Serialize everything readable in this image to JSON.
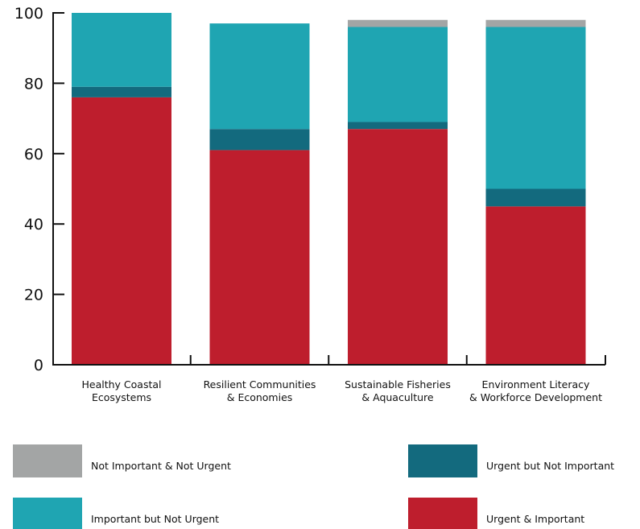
{
  "chart_data": {
    "type": "bar",
    "stacked": true,
    "categories": [
      [
        "Healthy Coastal",
        "Ecosystems"
      ],
      [
        "Resilient Communities",
        "& Economies"
      ],
      [
        "Sustainable Fisheries",
        "& Aquaculture"
      ],
      [
        "Environment Literacy",
        "& Workforce Development"
      ]
    ],
    "series": [
      {
        "name": "Urgent & Important",
        "color": "#be1e2d",
        "values": [
          76,
          61,
          67,
          45
        ]
      },
      {
        "name": "Urgent but Not Important",
        "color": "#136a7e",
        "values": [
          3,
          6,
          2,
          5
        ]
      },
      {
        "name": "Important but Not Urgent",
        "color": "#1fa5b2",
        "values": [
          21,
          30,
          27,
          46
        ]
      },
      {
        "name": "Not Important & Not Urgent",
        "color": "#a3a5a5",
        "values": [
          0,
          0,
          2,
          2
        ]
      }
    ],
    "yticks": [
      0,
      20,
      40,
      60,
      80,
      100
    ],
    "ylim": [
      0,
      100
    ],
    "grid": false,
    "legend_order": [
      "Not Important & Not Urgent",
      "Urgent but Not Important",
      "Important but Not Urgent",
      "Urgent & Important"
    ],
    "legend_placement": "bottom"
  }
}
